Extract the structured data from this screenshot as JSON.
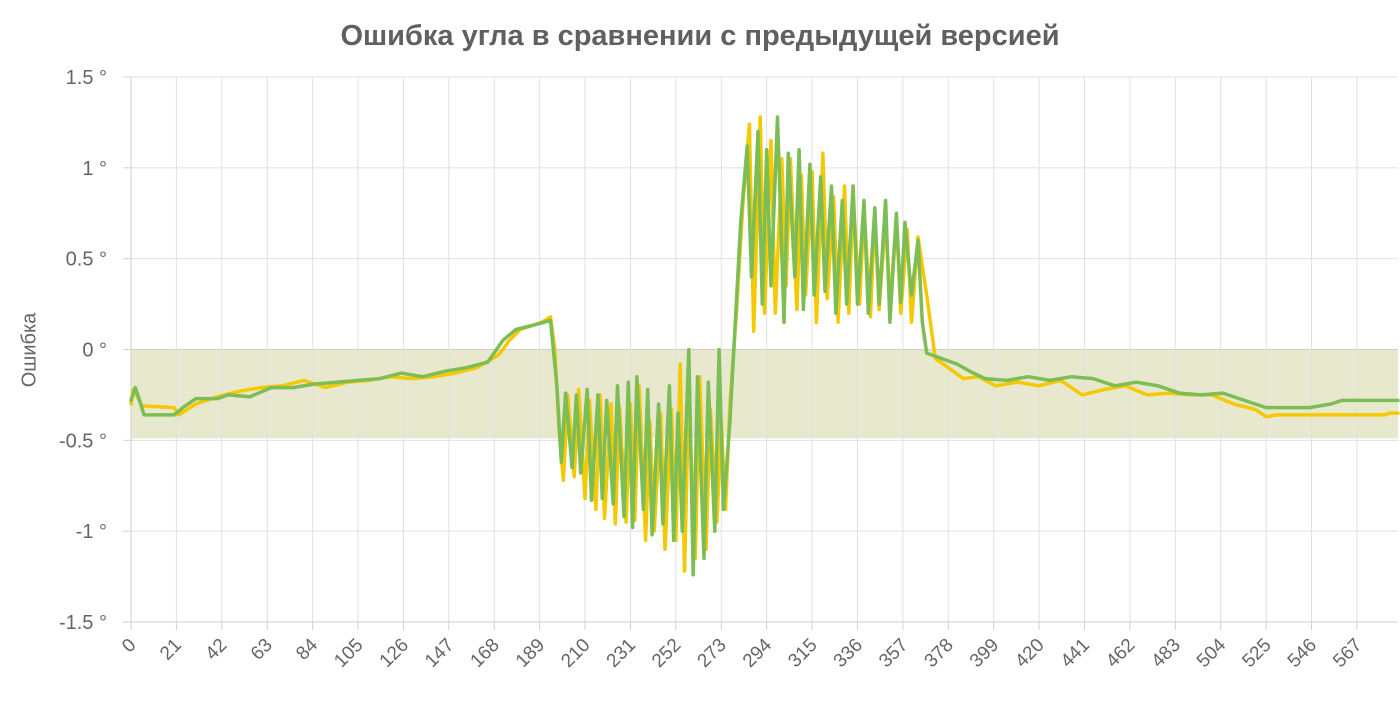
{
  "chart_data": {
    "type": "line",
    "title": "Ошибка угла в сравнении с предыдущей версией",
    "xlabel": "",
    "ylabel": "Ошибка",
    "y_unit_suffix": " °",
    "ylim": [
      -1.5,
      1.5
    ],
    "y_ticks": [
      1.5,
      1,
      0.5,
      0,
      -0.5,
      -1,
      -1.5
    ],
    "y_tick_labels": [
      "1.5 °",
      "1 °",
      "0.5 °",
      "0 °",
      "-0.5 °",
      "-1 °",
      "-1.5 °"
    ],
    "xlim": [
      0,
      586
    ],
    "x_ticks": [
      0,
      21,
      42,
      63,
      84,
      105,
      126,
      147,
      168,
      189,
      210,
      231,
      252,
      273,
      294,
      315,
      336,
      357,
      378,
      399,
      420,
      441,
      462,
      483,
      504,
      525,
      546,
      567
    ],
    "grid": true,
    "legend": "none",
    "zero_band_color": "#e8e8cf",
    "series": [
      {
        "color": "#f5c800",
        "points": [
          [
            0,
            -0.3
          ],
          [
            1,
            -0.22
          ],
          [
            3,
            -0.26
          ],
          [
            5,
            -0.31
          ],
          [
            20,
            -0.32
          ],
          [
            22,
            -0.36
          ],
          [
            30,
            -0.3
          ],
          [
            40,
            -0.26
          ],
          [
            50,
            -0.23
          ],
          [
            60,
            -0.21
          ],
          [
            70,
            -0.2
          ],
          [
            80,
            -0.17
          ],
          [
            90,
            -0.21
          ],
          [
            100,
            -0.18
          ],
          [
            110,
            -0.17
          ],
          [
            120,
            -0.15
          ],
          [
            130,
            -0.16
          ],
          [
            140,
            -0.15
          ],
          [
            150,
            -0.13
          ],
          [
            160,
            -0.1
          ],
          [
            170,
            -0.03
          ],
          [
            175,
            0.05
          ],
          [
            180,
            0.11
          ],
          [
            190,
            0.15
          ],
          [
            194,
            0.18
          ],
          [
            196,
            0.0
          ],
          [
            198,
            -0.45
          ],
          [
            200,
            -0.72
          ],
          [
            202,
            -0.25
          ],
          [
            205,
            -0.7
          ],
          [
            207,
            -0.22
          ],
          [
            210,
            -0.82
          ],
          [
            212,
            -0.28
          ],
          [
            215,
            -0.88
          ],
          [
            217,
            -0.25
          ],
          [
            219,
            -0.93
          ],
          [
            222,
            -0.3
          ],
          [
            224,
            -0.96
          ],
          [
            226,
            -0.32
          ],
          [
            229,
            -0.95
          ],
          [
            231,
            -0.3
          ],
          [
            233,
            -0.94
          ],
          [
            235,
            -0.2
          ],
          [
            238,
            -1.05
          ],
          [
            240,
            -0.4
          ],
          [
            242,
            -1.0
          ],
          [
            245,
            -0.35
          ],
          [
            247,
            -1.1
          ],
          [
            250,
            -0.33
          ],
          [
            252,
            -1.05
          ],
          [
            254,
            -0.08
          ],
          [
            256,
            -1.22
          ],
          [
            258,
            -0.25
          ],
          [
            261,
            -1.15
          ],
          [
            263,
            -0.15
          ],
          [
            266,
            -1.1
          ],
          [
            268,
            -0.33
          ],
          [
            271,
            -0.95
          ],
          [
            273,
            -0.4
          ],
          [
            275,
            -0.88
          ],
          [
            277,
            -0.3
          ],
          [
            280,
            0.2
          ],
          [
            283,
            0.8
          ],
          [
            286,
            1.24
          ],
          [
            288,
            0.1
          ],
          [
            291,
            1.28
          ],
          [
            293,
            0.2
          ],
          [
            296,
            1.15
          ],
          [
            298,
            0.2
          ],
          [
            301,
            1.05
          ],
          [
            303,
            0.35
          ],
          [
            305,
            1.05
          ],
          [
            308,
            0.22
          ],
          [
            310,
            0.96
          ],
          [
            312,
            0.3
          ],
          [
            315,
            0.98
          ],
          [
            317,
            0.15
          ],
          [
            320,
            1.08
          ],
          [
            322,
            0.28
          ],
          [
            325,
            0.84
          ],
          [
            327,
            0.15
          ],
          [
            330,
            0.9
          ],
          [
            332,
            0.2
          ],
          [
            334,
            0.85
          ],
          [
            337,
            0.25
          ],
          [
            339,
            0.78
          ],
          [
            342,
            0.18
          ],
          [
            344,
            0.75
          ],
          [
            346,
            0.22
          ],
          [
            349,
            0.72
          ],
          [
            351,
            0.25
          ],
          [
            354,
            0.72
          ],
          [
            356,
            0.2
          ],
          [
            359,
            0.66
          ],
          [
            361,
            0.15
          ],
          [
            364,
            0.62
          ],
          [
            368,
            0.3
          ],
          [
            372,
            -0.05
          ],
          [
            378,
            -0.1
          ],
          [
            385,
            -0.16
          ],
          [
            392,
            -0.15
          ],
          [
            400,
            -0.2
          ],
          [
            410,
            -0.18
          ],
          [
            420,
            -0.2
          ],
          [
            430,
            -0.17
          ],
          [
            440,
            -0.25
          ],
          [
            450,
            -0.22
          ],
          [
            460,
            -0.2
          ],
          [
            470,
            -0.25
          ],
          [
            480,
            -0.24
          ],
          [
            490,
            -0.25
          ],
          [
            500,
            -0.25
          ],
          [
            510,
            -0.3
          ],
          [
            520,
            -0.33
          ],
          [
            525,
            -0.37
          ],
          [
            530,
            -0.36
          ],
          [
            540,
            -0.36
          ],
          [
            550,
            -0.36
          ],
          [
            560,
            -0.36
          ],
          [
            570,
            -0.36
          ],
          [
            580,
            -0.36
          ],
          [
            582,
            -0.35
          ],
          [
            586,
            -0.35
          ]
        ]
      },
      {
        "color": "#7cbd55",
        "points": [
          [
            0,
            -0.28
          ],
          [
            2,
            -0.21
          ],
          [
            4,
            -0.28
          ],
          [
            6,
            -0.36
          ],
          [
            20,
            -0.36
          ],
          [
            24,
            -0.32
          ],
          [
            30,
            -0.27
          ],
          [
            40,
            -0.27
          ],
          [
            45,
            -0.25
          ],
          [
            55,
            -0.26
          ],
          [
            65,
            -0.21
          ],
          [
            75,
            -0.21
          ],
          [
            85,
            -0.19
          ],
          [
            95,
            -0.18
          ],
          [
            105,
            -0.17
          ],
          [
            115,
            -0.16
          ],
          [
            125,
            -0.13
          ],
          [
            135,
            -0.15
          ],
          [
            145,
            -0.12
          ],
          [
            155,
            -0.1
          ],
          [
            165,
            -0.07
          ],
          [
            172,
            0.05
          ],
          [
            178,
            0.11
          ],
          [
            188,
            0.14
          ],
          [
            194,
            0.16
          ],
          [
            197,
            -0.2
          ],
          [
            199,
            -0.62
          ],
          [
            201,
            -0.24
          ],
          [
            204,
            -0.65
          ],
          [
            206,
            -0.25
          ],
          [
            208,
            -0.68
          ],
          [
            211,
            -0.22
          ],
          [
            213,
            -0.83
          ],
          [
            216,
            -0.25
          ],
          [
            218,
            -0.82
          ],
          [
            220,
            -0.28
          ],
          [
            223,
            -0.85
          ],
          [
            225,
            -0.2
          ],
          [
            228,
            -0.92
          ],
          [
            230,
            -0.18
          ],
          [
            232,
            -0.98
          ],
          [
            234,
            -0.15
          ],
          [
            237,
            -0.88
          ],
          [
            239,
            -0.22
          ],
          [
            241,
            -1.02
          ],
          [
            244,
            -0.3
          ],
          [
            246,
            -0.96
          ],
          [
            249,
            -0.2
          ],
          [
            251,
            -1.05
          ],
          [
            253,
            -0.35
          ],
          [
            255,
            -1.0
          ],
          [
            258,
            0.0
          ],
          [
            260,
            -1.24
          ],
          [
            262,
            -0.15
          ],
          [
            265,
            -1.15
          ],
          [
            267,
            -0.18
          ],
          [
            270,
            -1.0
          ],
          [
            272,
            0.0
          ],
          [
            274,
            -0.88
          ],
          [
            277,
            -0.4
          ],
          [
            282,
            0.7
          ],
          [
            285,
            1.12
          ],
          [
            287,
            0.4
          ],
          [
            290,
            1.2
          ],
          [
            292,
            0.25
          ],
          [
            294,
            1.1
          ],
          [
            296,
            0.35
          ],
          [
            299,
            1.28
          ],
          [
            302,
            0.15
          ],
          [
            304,
            1.08
          ],
          [
            307,
            0.4
          ],
          [
            309,
            1.1
          ],
          [
            311,
            0.22
          ],
          [
            314,
            1.02
          ],
          [
            316,
            0.3
          ],
          [
            319,
            0.95
          ],
          [
            321,
            0.32
          ],
          [
            324,
            0.9
          ],
          [
            326,
            0.2
          ],
          [
            329,
            0.82
          ],
          [
            331,
            0.25
          ],
          [
            334,
            0.9
          ],
          [
            336,
            0.25
          ],
          [
            339,
            0.82
          ],
          [
            341,
            0.2
          ],
          [
            344,
            0.78
          ],
          [
            346,
            0.25
          ],
          [
            349,
            0.82
          ],
          [
            351,
            0.15
          ],
          [
            354,
            0.75
          ],
          [
            356,
            0.26
          ],
          [
            358,
            0.7
          ],
          [
            361,
            0.3
          ],
          [
            364,
            0.6
          ],
          [
            366,
            0.15
          ],
          [
            368,
            -0.02
          ],
          [
            375,
            -0.05
          ],
          [
            382,
            -0.08
          ],
          [
            388,
            -0.12
          ],
          [
            395,
            -0.16
          ],
          [
            405,
            -0.17
          ],
          [
            415,
            -0.15
          ],
          [
            425,
            -0.17
          ],
          [
            435,
            -0.15
          ],
          [
            445,
            -0.16
          ],
          [
            455,
            -0.2
          ],
          [
            465,
            -0.18
          ],
          [
            475,
            -0.2
          ],
          [
            485,
            -0.24
          ],
          [
            495,
            -0.25
          ],
          [
            505,
            -0.24
          ],
          [
            515,
            -0.28
          ],
          [
            525,
            -0.32
          ],
          [
            535,
            -0.32
          ],
          [
            545,
            -0.32
          ],
          [
            555,
            -0.3
          ],
          [
            560,
            -0.28
          ],
          [
            570,
            -0.28
          ],
          [
            580,
            -0.28
          ],
          [
            586,
            -0.28
          ]
        ]
      }
    ]
  }
}
